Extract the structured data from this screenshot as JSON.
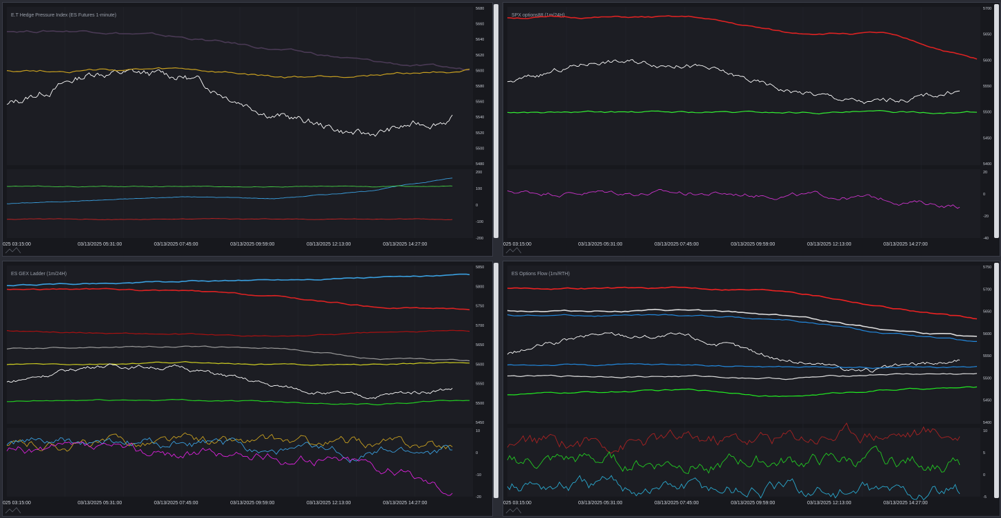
{
  "x_ticks": [
    "025 03:15:00",
    "03/13/2025 05:31:00",
    "03/13/2025 07:45:00",
    "03/13/2025 09:59:00",
    "03/13/2025 12:13:00",
    "03/13/2025 14:27:00"
  ],
  "panels": [
    {
      "title": "E.T Hedge Pressure Index (ES Futures 1-minute)",
      "main_y_ticks": [
        "5680",
        "5660",
        "5640",
        "5620",
        "5600",
        "5580",
        "5560",
        "5540",
        "5520",
        "5500",
        "5480"
      ],
      "sub_y_ticks": [
        "200",
        "100",
        "0",
        "-100",
        "-200"
      ]
    },
    {
      "title": "SPX options88 (1m/24H)",
      "main_y_ticks": [
        "5700",
        "5650",
        "5600",
        "5550",
        "5500",
        "5450",
        "5400"
      ],
      "sub_y_ticks": [
        "20",
        "0",
        "-20",
        "-40"
      ]
    },
    {
      "title": "ES GEX Ladder (1m/24H)",
      "main_y_ticks": [
        "5850",
        "5800",
        "5750",
        "5700",
        "5650",
        "5600",
        "5550",
        "5500",
        "5450"
      ],
      "sub_y_ticks": [
        "10",
        "0",
        "-10",
        "-20"
      ]
    },
    {
      "title": "ES Options Flow (1m/RTH)",
      "main_y_ticks": [
        "5750",
        "5700",
        "5650",
        "5600",
        "5550",
        "5500",
        "5450",
        "5400"
      ],
      "sub_y_ticks": [
        "10",
        "5",
        "0",
        "-5"
      ]
    }
  ],
  "chart_data": [
    {
      "type": "line",
      "title": "E.T Hedge Pressure Index (ES Futures 1-minute)",
      "x": [
        "025 03:15:00",
        "03/13/2025 05:31:00",
        "03/13/2025 07:45:00",
        "03/13/2025 09:59:00",
        "03/13/2025 12:13:00",
        "03/13/2025 14:27:00"
      ],
      "ylim": [
        5480,
        5680
      ],
      "series": [
        {
          "values": [
            5555,
            5598,
            5592,
            5545,
            5517,
            5540
          ],
          "color": "#ffffff"
        },
        {
          "values": [
            5650,
            5650,
            5640,
            5625,
            5610,
            5600
          ],
          "color": "#4a3a55"
        },
        {
          "values": [
            5600,
            5600,
            5600,
            5590,
            5595,
            5600
          ],
          "color": "#c8a020"
        }
      ],
      "sub": {
        "ylim": [
          -200,
          200
        ],
        "series": [
          {
            "values": [
              0,
              20,
              40,
              30,
              70,
              150
            ],
            "color": "#3aa0e0"
          },
          {
            "values": [
              100,
              100,
              100,
              100,
              100,
              100
            ],
            "color": "#44cc44"
          },
          {
            "values": [
              -90,
              -90,
              -90,
              -90,
              -90,
              -90
            ],
            "color": "#cc2222"
          }
        ]
      }
    },
    {
      "type": "line",
      "title": "SPX options88 (1m/24H)",
      "x": [
        "025 03:15:00",
        "03/13/2025 05:31:00",
        "03/13/2025 07:45:00",
        "03/13/2025 09:59:00",
        "03/13/2025 12:13:00",
        "03/13/2025 14:27:00"
      ],
      "ylim": [
        5400,
        5700
      ],
      "series": [
        {
          "values": [
            5555,
            5598,
            5592,
            5545,
            5517,
            5540
          ],
          "color": "#ffffff"
        },
        {
          "values": [
            5680,
            5680,
            5680,
            5650,
            5650,
            5600
          ],
          "color": "#dd2222"
        },
        {
          "values": [
            5500,
            5500,
            5500,
            5500,
            5500,
            5500
          ],
          "color": "#33ee33"
        }
      ],
      "sub": {
        "ylim": [
          -40,
          20
        ],
        "series": [
          {
            "values": [
              0,
              0,
              -1,
              -2,
              -5,
              -12
            ],
            "color": "#cc33cc"
          }
        ]
      }
    },
    {
      "type": "line",
      "title": "ES GEX Ladder (1m/24H)",
      "x": [
        "025 03:15:00",
        "03/13/2025 05:31:00",
        "03/13/2025 07:45:00",
        "03/13/2025 09:59:00",
        "03/13/2025 12:13:00",
        "03/13/2025 14:27:00"
      ],
      "ylim": [
        5450,
        5850
      ],
      "series": [
        {
          "values": [
            5800,
            5805,
            5810,
            5815,
            5820,
            5825
          ],
          "color": "#3aa0e0"
        },
        {
          "values": [
            5790,
            5790,
            5785,
            5770,
            5745,
            5740
          ],
          "color": "#dd2222"
        },
        {
          "values": [
            5685,
            5680,
            5675,
            5670,
            5680,
            5685
          ],
          "color": "#aa1111"
        },
        {
          "values": [
            5640,
            5645,
            5645,
            5640,
            5615,
            5610
          ],
          "color": "#999999"
        },
        {
          "values": [
            5600,
            5600,
            5605,
            5600,
            5600,
            5605
          ],
          "color": "#cccc22"
        },
        {
          "values": [
            5555,
            5598,
            5592,
            5545,
            5517,
            5540
          ],
          "color": "#ffffff"
        },
        {
          "values": [
            5505,
            5510,
            5510,
            5505,
            5500,
            5510
          ],
          "color": "#22cc22"
        }
      ],
      "sub": {
        "ylim": [
          -20,
          10
        ],
        "series": [
          {
            "values": [
              2,
              3,
              4,
              3,
              3,
              2
            ],
            "color": "#c8a020"
          },
          {
            "values": [
              4,
              3,
              3,
              1,
              -1,
              0
            ],
            "color": "#3aa0e0"
          },
          {
            "values": [
              0,
              0,
              -1,
              -3,
              -4,
              -16
            ],
            "color": "#dd22dd"
          }
        ]
      }
    },
    {
      "type": "line",
      "title": "ES Options Flow (1m/RTH)",
      "x": [
        "025 03:15:00",
        "03/13/2025 05:31:00",
        "03/13/2025 07:45:00",
        "03/13/2025 09:59:00",
        "03/13/2025 12:13:00",
        "03/13/2025 14:27:00"
      ],
      "ylim": [
        5400,
        5750
      ],
      "series": [
        {
          "values": [
            5700,
            5700,
            5700,
            5695,
            5660,
            5630
          ],
          "color": "#ee2222"
        },
        {
          "values": [
            5650,
            5650,
            5650,
            5640,
            5610,
            5590
          ],
          "color": "#dddddd"
        },
        {
          "values": [
            5640,
            5640,
            5640,
            5630,
            5600,
            5580
          ],
          "color": "#2288dd"
        },
        {
          "values": [
            5555,
            5598,
            5592,
            5545,
            5517,
            5540
          ],
          "color": "#ffffff"
        },
        {
          "values": [
            5530,
            5530,
            5530,
            5525,
            5525,
            5525
          ],
          "color": "#2288dd"
        },
        {
          "values": [
            5505,
            5505,
            5505,
            5500,
            5510,
            5510
          ],
          "color": "#dddddd"
        },
        {
          "values": [
            5465,
            5470,
            5475,
            5460,
            5475,
            5480
          ],
          "color": "#22ee22"
        }
      ],
      "sub": {
        "ylim": [
          -10,
          10
        ],
        "series": [
          {
            "values": [
              5,
              6,
              6,
              7,
              9,
              8
            ],
            "color": "#aa2222"
          },
          {
            "values": [
              0,
              0,
              0,
              0,
              0,
              0
            ],
            "color": "#22cc22"
          },
          {
            "values": [
              -6,
              -7,
              -7,
              -8,
              -9,
              -9
            ],
            "color": "#2aaad0"
          }
        ]
      }
    }
  ]
}
